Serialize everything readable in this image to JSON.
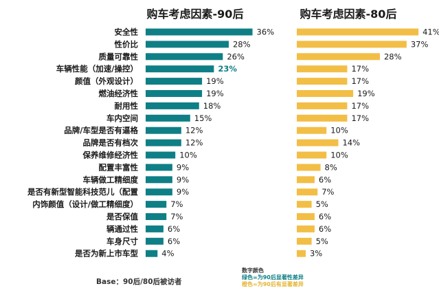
{
  "colors": {
    "series_90": "#0f7f86",
    "series_80": "#f2be46",
    "highlight": "#0f7f86"
  },
  "footer": {
    "base": "Base：90后/80后被访者",
    "legend_title": "数字颜色",
    "legend_green": "绿色=为90后显著性差异",
    "legend_yellow": "橙色=为90后有显著差异"
  },
  "chart_data": [
    {
      "type": "bar",
      "orientation": "horizontal",
      "title": "购车考虑因素-90后",
      "categories": [
        "安全性",
        "性价比",
        "质量可靠性",
        "车辆性能（加速/操控）",
        "颜值（外观设计）",
        "燃油经济性",
        "耐用性",
        "车内空间",
        "品牌/车型是否有逼格",
        "品牌是否有档次",
        "保养维修经济性",
        "配置丰富性",
        "车辆做工精细度",
        "是否有新型智能科技范儿（配置",
        "内饰颜值（设计/做工精细度）",
        "是否保值",
        "辆通过性",
        "车身尺寸",
        "是否为新上市车型"
      ],
      "values": [
        36,
        28,
        26,
        23,
        19,
        19,
        18,
        15,
        12,
        12,
        10,
        9,
        9,
        9,
        7,
        7,
        6,
        6,
        4
      ],
      "labels": [
        "36%",
        "28%",
        "26%",
        "23%",
        "19%",
        "19%",
        "18%",
        "15%",
        "12%",
        "12%",
        "10%",
        "9%",
        "9%",
        "9%",
        "7%",
        "7%",
        "6%",
        "6%",
        "4%"
      ],
      "highlighted_index": [
        3
      ],
      "unit": "%"
    },
    {
      "type": "bar",
      "orientation": "horizontal",
      "title": "购车考虑因素-80后",
      "values": [
        41,
        37,
        28,
        17,
        17,
        19,
        17,
        17,
        10,
        14,
        10,
        8,
        6,
        7,
        5,
        6,
        6,
        5,
        3
      ],
      "labels": [
        "41%",
        "37%",
        "28%",
        "17%",
        "17%",
        "19%",
        "17%",
        "17%",
        "10%",
        "14%",
        "10%",
        "8%",
        "6%",
        "7%",
        "5%",
        "6%",
        "6%",
        "5%",
        "3%"
      ],
      "unit": "%"
    }
  ]
}
